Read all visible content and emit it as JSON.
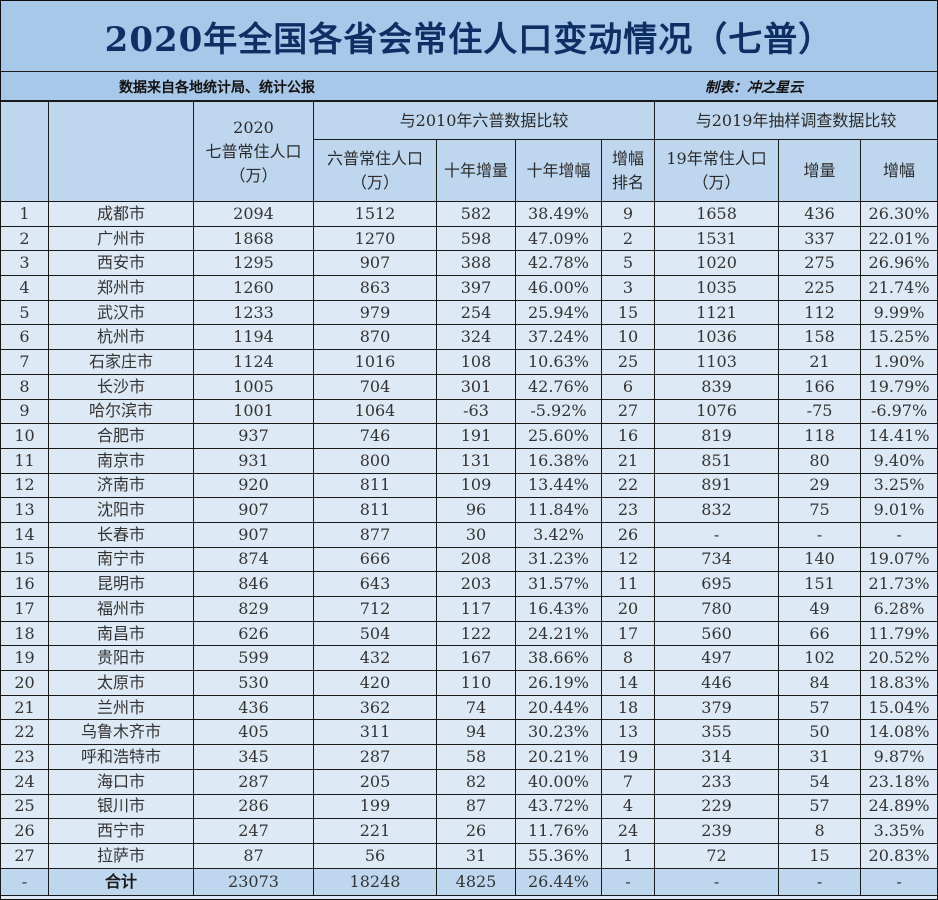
{
  "title": "2020年全国各省会常住人口变动情况（七普）",
  "subtitle": {
    "source": "数据来自各地统计局、统计公报",
    "author": "制表：冲之星云"
  },
  "colors": {
    "title_bar": "#a8c8ea",
    "header_bg": "#bed7ef",
    "row_bg": "#dde9f5",
    "title_text": "#0f2e63",
    "border": "#1a1a1a"
  },
  "header": {
    "col2020_year": "2020",
    "col2020_label": "七普常住人口",
    "col2020_unit": "（万）",
    "group2010": "与2010年六普数据比较",
    "group2019": "与2019年抽样调查数据比较",
    "pop2010_label": "六普常住人口",
    "pop2010_unit": "（万）",
    "inc10": "十年增量",
    "rate10": "十年增幅",
    "rank_line1": "增幅",
    "rank_line2": "排名",
    "pop2019_label": "19年常住人口",
    "pop2019_unit": "（万）",
    "inc19": "增量",
    "rate19": "增幅"
  },
  "rows": [
    {
      "no": "1",
      "city": "成都市",
      "p2020": "2094",
      "p2010": "1512",
      "inc10": "582",
      "rate10": "38.49%",
      "rank": "9",
      "p2019": "1658",
      "inc19": "436",
      "rate19": "26.30%"
    },
    {
      "no": "2",
      "city": "广州市",
      "p2020": "1868",
      "p2010": "1270",
      "inc10": "598",
      "rate10": "47.09%",
      "rank": "2",
      "p2019": "1531",
      "inc19": "337",
      "rate19": "22.01%"
    },
    {
      "no": "3",
      "city": "西安市",
      "p2020": "1295",
      "p2010": "907",
      "inc10": "388",
      "rate10": "42.78%",
      "rank": "5",
      "p2019": "1020",
      "inc19": "275",
      "rate19": "26.96%"
    },
    {
      "no": "4",
      "city": "郑州市",
      "p2020": "1260",
      "p2010": "863",
      "inc10": "397",
      "rate10": "46.00%",
      "rank": "3",
      "p2019": "1035",
      "inc19": "225",
      "rate19": "21.74%"
    },
    {
      "no": "5",
      "city": "武汉市",
      "p2020": "1233",
      "p2010": "979",
      "inc10": "254",
      "rate10": "25.94%",
      "rank": "15",
      "p2019": "1121",
      "inc19": "112",
      "rate19": "9.99%"
    },
    {
      "no": "6",
      "city": "杭州市",
      "p2020": "1194",
      "p2010": "870",
      "inc10": "324",
      "rate10": "37.24%",
      "rank": "10",
      "p2019": "1036",
      "inc19": "158",
      "rate19": "15.25%"
    },
    {
      "no": "7",
      "city": "石家庄市",
      "p2020": "1124",
      "p2010": "1016",
      "inc10": "108",
      "rate10": "10.63%",
      "rank": "25",
      "p2019": "1103",
      "inc19": "21",
      "rate19": "1.90%"
    },
    {
      "no": "8",
      "city": "长沙市",
      "p2020": "1005",
      "p2010": "704",
      "inc10": "301",
      "rate10": "42.76%",
      "rank": "6",
      "p2019": "839",
      "inc19": "166",
      "rate19": "19.79%"
    },
    {
      "no": "9",
      "city": "哈尔滨市",
      "p2020": "1001",
      "p2010": "1064",
      "inc10": "-63",
      "rate10": "-5.92%",
      "rank": "27",
      "p2019": "1076",
      "inc19": "-75",
      "rate19": "-6.97%"
    },
    {
      "no": "10",
      "city": "合肥市",
      "p2020": "937",
      "p2010": "746",
      "inc10": "191",
      "rate10": "25.60%",
      "rank": "16",
      "p2019": "819",
      "inc19": "118",
      "rate19": "14.41%"
    },
    {
      "no": "11",
      "city": "南京市",
      "p2020": "931",
      "p2010": "800",
      "inc10": "131",
      "rate10": "16.38%",
      "rank": "21",
      "p2019": "851",
      "inc19": "80",
      "rate19": "9.40%"
    },
    {
      "no": "12",
      "city": "济南市",
      "p2020": "920",
      "p2010": "811",
      "inc10": "109",
      "rate10": "13.44%",
      "rank": "22",
      "p2019": "891",
      "inc19": "29",
      "rate19": "3.25%"
    },
    {
      "no": "13",
      "city": "沈阳市",
      "p2020": "907",
      "p2010": "811",
      "inc10": "96",
      "rate10": "11.84%",
      "rank": "23",
      "p2019": "832",
      "inc19": "75",
      "rate19": "9.01%"
    },
    {
      "no": "14",
      "city": "长春市",
      "p2020": "907",
      "p2010": "877",
      "inc10": "30",
      "rate10": "3.42%",
      "rank": "26",
      "p2019": "-",
      "inc19": "-",
      "rate19": "-"
    },
    {
      "no": "15",
      "city": "南宁市",
      "p2020": "874",
      "p2010": "666",
      "inc10": "208",
      "rate10": "31.23%",
      "rank": "12",
      "p2019": "734",
      "inc19": "140",
      "rate19": "19.07%"
    },
    {
      "no": "16",
      "city": "昆明市",
      "p2020": "846",
      "p2010": "643",
      "inc10": "203",
      "rate10": "31.57%",
      "rank": "11",
      "p2019": "695",
      "inc19": "151",
      "rate19": "21.73%"
    },
    {
      "no": "17",
      "city": "福州市",
      "p2020": "829",
      "p2010": "712",
      "inc10": "117",
      "rate10": "16.43%",
      "rank": "20",
      "p2019": "780",
      "inc19": "49",
      "rate19": "6.28%"
    },
    {
      "no": "18",
      "city": "南昌市",
      "p2020": "626",
      "p2010": "504",
      "inc10": "122",
      "rate10": "24.21%",
      "rank": "17",
      "p2019": "560",
      "inc19": "66",
      "rate19": "11.79%"
    },
    {
      "no": "19",
      "city": "贵阳市",
      "p2020": "599",
      "p2010": "432",
      "inc10": "167",
      "rate10": "38.66%",
      "rank": "8",
      "p2019": "497",
      "inc19": "102",
      "rate19": "20.52%"
    },
    {
      "no": "20",
      "city": "太原市",
      "p2020": "530",
      "p2010": "420",
      "inc10": "110",
      "rate10": "26.19%",
      "rank": "14",
      "p2019": "446",
      "inc19": "84",
      "rate19": "18.83%"
    },
    {
      "no": "21",
      "city": "兰州市",
      "p2020": "436",
      "p2010": "362",
      "inc10": "74",
      "rate10": "20.44%",
      "rank": "18",
      "p2019": "379",
      "inc19": "57",
      "rate19": "15.04%"
    },
    {
      "no": "22",
      "city": "乌鲁木齐市",
      "p2020": "405",
      "p2010": "311",
      "inc10": "94",
      "rate10": "30.23%",
      "rank": "13",
      "p2019": "355",
      "inc19": "50",
      "rate19": "14.08%"
    },
    {
      "no": "23",
      "city": "呼和浩特市",
      "p2020": "345",
      "p2010": "287",
      "inc10": "58",
      "rate10": "20.21%",
      "rank": "19",
      "p2019": "314",
      "inc19": "31",
      "rate19": "9.87%"
    },
    {
      "no": "24",
      "city": "海口市",
      "p2020": "287",
      "p2010": "205",
      "inc10": "82",
      "rate10": "40.00%",
      "rank": "7",
      "p2019": "233",
      "inc19": "54",
      "rate19": "23.18%"
    },
    {
      "no": "25",
      "city": "银川市",
      "p2020": "286",
      "p2010": "199",
      "inc10": "87",
      "rate10": "43.72%",
      "rank": "4",
      "p2019": "229",
      "inc19": "57",
      "rate19": "24.89%"
    },
    {
      "no": "26",
      "city": "西宁市",
      "p2020": "247",
      "p2010": "221",
      "inc10": "26",
      "rate10": "11.76%",
      "rank": "24",
      "p2019": "239",
      "inc19": "8",
      "rate19": "3.35%"
    },
    {
      "no": "27",
      "city": "拉萨市",
      "p2020": "87",
      "p2010": "56",
      "inc10": "31",
      "rate10": "55.36%",
      "rank": "1",
      "p2019": "72",
      "inc19": "15",
      "rate19": "20.83%"
    }
  ],
  "total": {
    "no": "-",
    "city": "合计",
    "p2020": "23073",
    "p2010": "18248",
    "inc10": "4825",
    "rate10": "26.44%",
    "rank": "-",
    "p2019": "-",
    "inc19": "-",
    "rate19": "-"
  }
}
